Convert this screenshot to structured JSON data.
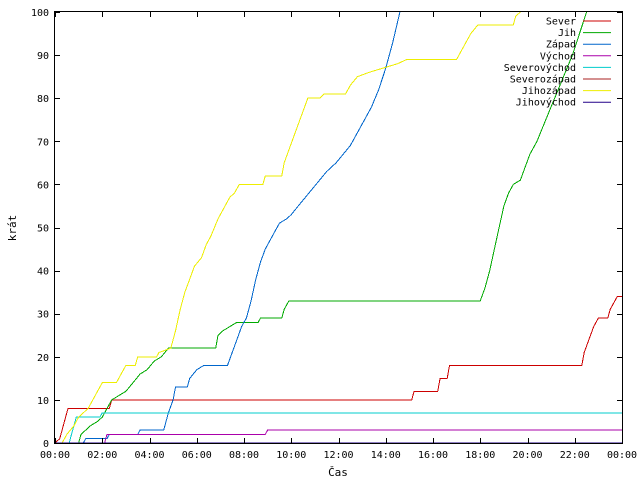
{
  "chart_data": {
    "type": "line",
    "xlabel": "Čas",
    "ylabel": "krát",
    "xlim": [
      0,
      24
    ],
    "ylim": [
      0,
      100
    ],
    "x_ticks": [
      {
        "value": 0,
        "label": "00:00"
      },
      {
        "value": 2,
        "label": "02:00"
      },
      {
        "value": 4,
        "label": "04:00"
      },
      {
        "value": 6,
        "label": "06:00"
      },
      {
        "value": 8,
        "label": "08:00"
      },
      {
        "value": 10,
        "label": "10:00"
      },
      {
        "value": 12,
        "label": "12:00"
      },
      {
        "value": 14,
        "label": "14:00"
      },
      {
        "value": 16,
        "label": "16:00"
      },
      {
        "value": 18,
        "label": "18:00"
      },
      {
        "value": 20,
        "label": "20:00"
      },
      {
        "value": 22,
        "label": "22:00"
      },
      {
        "value": 24,
        "label": "00:00"
      }
    ],
    "y_ticks": [
      {
        "value": 0,
        "label": "0"
      },
      {
        "value": 10,
        "label": "10"
      },
      {
        "value": 20,
        "label": "20"
      },
      {
        "value": 30,
        "label": "30"
      },
      {
        "value": 40,
        "label": "40"
      },
      {
        "value": 50,
        "label": "50"
      },
      {
        "value": 60,
        "label": "60"
      },
      {
        "value": 70,
        "label": "70"
      },
      {
        "value": 80,
        "label": "80"
      },
      {
        "value": 90,
        "label": "90"
      },
      {
        "value": 100,
        "label": "100"
      }
    ],
    "grid": false,
    "legend_position": "top-right",
    "series": [
      {
        "name": "Sever",
        "color": "#cc0000",
        "points": [
          [
            0,
            0
          ],
          [
            0.2,
            1
          ],
          [
            0.3,
            3
          ],
          [
            0.45,
            6
          ],
          [
            0.55,
            8
          ],
          [
            2.3,
            8
          ],
          [
            2.4,
            10
          ],
          [
            15.1,
            10
          ],
          [
            15.2,
            12
          ],
          [
            16.2,
            12
          ],
          [
            16.3,
            15
          ],
          [
            16.6,
            15
          ],
          [
            16.7,
            18
          ],
          [
            22.3,
            18
          ],
          [
            22.4,
            21
          ],
          [
            22.6,
            24
          ],
          [
            22.8,
            27
          ],
          [
            23.0,
            29
          ],
          [
            23.4,
            29
          ],
          [
            23.5,
            31
          ],
          [
            23.7,
            33
          ],
          [
            23.8,
            34
          ],
          [
            24,
            34
          ]
        ]
      },
      {
        "name": "Jih",
        "color": "#00aa00",
        "points": [
          [
            0,
            0
          ],
          [
            1.0,
            0
          ],
          [
            1.1,
            2
          ],
          [
            1.3,
            3
          ],
          [
            1.5,
            4
          ],
          [
            1.8,
            5
          ],
          [
            2.0,
            6
          ],
          [
            2.2,
            8
          ],
          [
            2.4,
            10
          ],
          [
            2.7,
            11
          ],
          [
            3.0,
            12
          ],
          [
            3.3,
            14
          ],
          [
            3.6,
            16
          ],
          [
            3.9,
            17
          ],
          [
            4.2,
            19
          ],
          [
            4.5,
            20
          ],
          [
            4.8,
            22
          ],
          [
            6.8,
            22
          ],
          [
            6.9,
            25
          ],
          [
            7.1,
            26
          ],
          [
            7.4,
            27
          ],
          [
            7.7,
            28
          ],
          [
            8.6,
            28
          ],
          [
            8.7,
            29
          ],
          [
            9.6,
            29
          ],
          [
            9.7,
            31
          ],
          [
            9.9,
            33
          ],
          [
            18.0,
            33
          ],
          [
            18.2,
            36
          ],
          [
            18.4,
            40
          ],
          [
            18.6,
            45
          ],
          [
            18.8,
            50
          ],
          [
            19.0,
            55
          ],
          [
            19.2,
            58
          ],
          [
            19.4,
            60
          ],
          [
            19.7,
            61
          ],
          [
            19.9,
            64
          ],
          [
            20.1,
            67
          ],
          [
            20.4,
            70
          ],
          [
            20.7,
            74
          ],
          [
            21.0,
            78
          ],
          [
            21.3,
            82
          ],
          [
            21.6,
            86
          ],
          [
            21.9,
            90
          ],
          [
            22.2,
            95
          ],
          [
            22.5,
            100
          ]
        ]
      },
      {
        "name": "Západ",
        "color": "#0066cc",
        "points": [
          [
            0,
            0
          ],
          [
            1.2,
            0
          ],
          [
            1.3,
            1
          ],
          [
            2.2,
            1
          ],
          [
            2.3,
            2
          ],
          [
            3.5,
            2
          ],
          [
            3.6,
            3
          ],
          [
            4.6,
            3
          ],
          [
            4.8,
            7
          ],
          [
            5.0,
            10
          ],
          [
            5.1,
            13
          ],
          [
            5.6,
            13
          ],
          [
            5.7,
            15
          ],
          [
            6.0,
            17
          ],
          [
            6.3,
            18
          ],
          [
            7.3,
            18
          ],
          [
            7.5,
            21
          ],
          [
            7.7,
            24
          ],
          [
            7.9,
            27
          ],
          [
            8.1,
            29
          ],
          [
            8.3,
            33
          ],
          [
            8.5,
            38
          ],
          [
            8.7,
            42
          ],
          [
            8.9,
            45
          ],
          [
            9.1,
            47
          ],
          [
            9.3,
            49
          ],
          [
            9.5,
            51
          ],
          [
            9.8,
            52
          ],
          [
            10.0,
            53
          ],
          [
            10.3,
            55
          ],
          [
            10.6,
            57
          ],
          [
            10.9,
            59
          ],
          [
            11.2,
            61
          ],
          [
            11.5,
            63
          ],
          [
            11.9,
            65
          ],
          [
            12.2,
            67
          ],
          [
            12.5,
            69
          ],
          [
            12.8,
            72
          ],
          [
            13.1,
            75
          ],
          [
            13.4,
            78
          ],
          [
            13.7,
            82
          ],
          [
            14.0,
            87
          ],
          [
            14.3,
            93
          ],
          [
            14.6,
            100
          ]
        ]
      },
      {
        "name": "Východ",
        "color": "#aa00aa",
        "points": [
          [
            0,
            0
          ],
          [
            2.1,
            0
          ],
          [
            2.2,
            2
          ],
          [
            8.9,
            2
          ],
          [
            9.0,
            3
          ],
          [
            24,
            3
          ]
        ]
      },
      {
        "name": "Severovýchod",
        "color": "#00cccc",
        "points": [
          [
            0,
            0
          ],
          [
            0.6,
            0
          ],
          [
            0.7,
            2
          ],
          [
            0.8,
            4
          ],
          [
            0.9,
            6
          ],
          [
            1.9,
            6
          ],
          [
            2.0,
            7
          ],
          [
            24,
            7
          ]
        ]
      },
      {
        "name": "Severozápad",
        "color": "#aa2222",
        "points": [
          [
            0,
            0
          ],
          [
            24,
            0
          ]
        ]
      },
      {
        "name": "Jihozápad",
        "color": "#eeee00",
        "points": [
          [
            0,
            0
          ],
          [
            0.3,
            0
          ],
          [
            0.5,
            2
          ],
          [
            0.8,
            4
          ],
          [
            1.0,
            6
          ],
          [
            1.4,
            8
          ],
          [
            1.6,
            10
          ],
          [
            1.8,
            12
          ],
          [
            2.0,
            14
          ],
          [
            2.6,
            14
          ],
          [
            2.8,
            16
          ],
          [
            3.0,
            18
          ],
          [
            3.4,
            18
          ],
          [
            3.5,
            20
          ],
          [
            4.3,
            20
          ],
          [
            4.4,
            21
          ],
          [
            4.9,
            22
          ],
          [
            5.1,
            26
          ],
          [
            5.3,
            31
          ],
          [
            5.5,
            35
          ],
          [
            5.7,
            38
          ],
          [
            5.9,
            41
          ],
          [
            6.2,
            43
          ],
          [
            6.4,
            46
          ],
          [
            6.6,
            48
          ],
          [
            6.9,
            52
          ],
          [
            7.2,
            55
          ],
          [
            7.4,
            57
          ],
          [
            7.6,
            58
          ],
          [
            7.8,
            60
          ],
          [
            8.8,
            60
          ],
          [
            8.9,
            62
          ],
          [
            9.6,
            62
          ],
          [
            9.7,
            65
          ],
          [
            9.9,
            68
          ],
          [
            10.1,
            71
          ],
          [
            10.3,
            74
          ],
          [
            10.5,
            77
          ],
          [
            10.7,
            80
          ],
          [
            11.2,
            80
          ],
          [
            11.4,
            81
          ],
          [
            12.3,
            81
          ],
          [
            12.5,
            83
          ],
          [
            12.8,
            85
          ],
          [
            13.3,
            86
          ],
          [
            13.9,
            87
          ],
          [
            14.5,
            88
          ],
          [
            14.9,
            89
          ],
          [
            17.0,
            89
          ],
          [
            17.3,
            92
          ],
          [
            17.6,
            95
          ],
          [
            17.9,
            97
          ],
          [
            19.4,
            97
          ],
          [
            19.5,
            99
          ],
          [
            19.7,
            100
          ]
        ]
      },
      {
        "name": "Jihovýchod",
        "color": "#220088",
        "points": [
          [
            0,
            0
          ],
          [
            24,
            0
          ]
        ]
      }
    ]
  }
}
